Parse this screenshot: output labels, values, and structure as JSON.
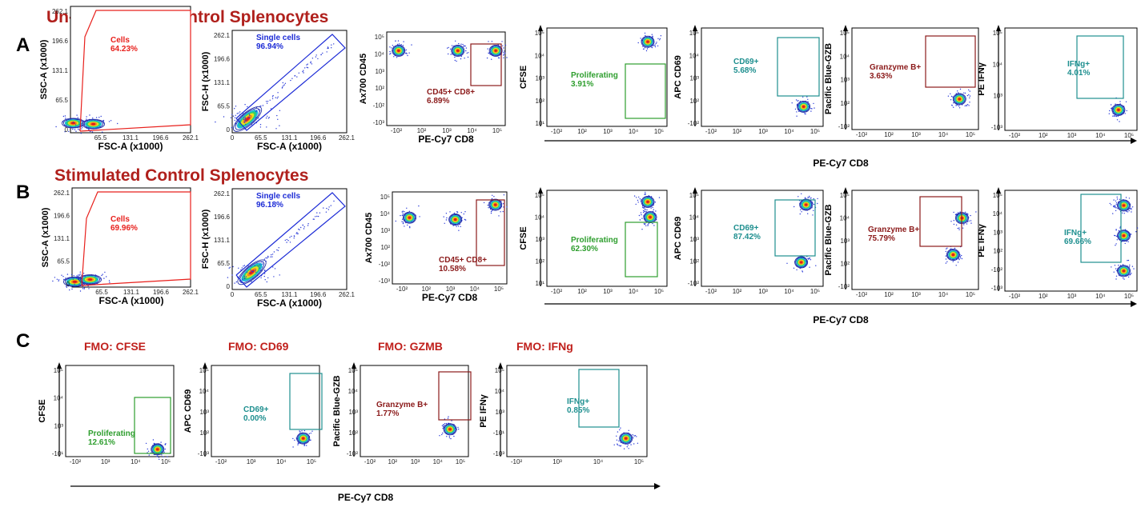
{
  "figure": {
    "section_a_title": "Un-Stimulated Control Splenocytes",
    "section_b_title": "Stimulated Control Splenocytes",
    "letter_a": "A",
    "letter_b": "B",
    "letter_c": "C",
    "shared_x_label": "PE-Cy7 CD8"
  },
  "colors": {
    "title_dark_red": "#b0201c",
    "gate_red": "#e8201c",
    "gate_blue": "#1c2bd6",
    "gate_dark_red": "#8b1a1a",
    "gate_green": "#2e9e2e",
    "gate_teal": "#1e8f8f"
  },
  "chart_data": [
    {
      "id": "A1",
      "type": "scatter",
      "subtype": "flow-cytometry-contour",
      "xlabel": "FSC-A (x1000)",
      "ylabel": "SSC-A (x1000)",
      "x_scale": "linear",
      "y_scale": "linear",
      "xlim": [
        0,
        262.1
      ],
      "ylim": [
        0,
        262.1
      ],
      "x_ticks": [
        "65.5",
        "131.1",
        "196.6",
        "262.1"
      ],
      "y_ticks": [
        "262.1",
        "196.6",
        "131.1",
        "65.5",
        "0"
      ],
      "gate": {
        "name": "Cells",
        "value": "64.23%",
        "color": "#e8201c"
      },
      "density_centers": [
        {
          "x": 6,
          "y": 20
        },
        {
          "x": 50,
          "y": 18
        }
      ]
    },
    {
      "id": "A2",
      "type": "scatter",
      "subtype": "flow-cytometry-contour",
      "xlabel": "FSC-A (x1000)",
      "ylabel": "FSC-H (x1000)",
      "x_scale": "linear",
      "y_scale": "linear",
      "xlim": [
        0,
        262.1
      ],
      "ylim": [
        0,
        262.1
      ],
      "x_ticks": [
        "0",
        "65.5",
        "131.1",
        "196.6",
        "262.1"
      ],
      "y_ticks": [
        "262.1",
        "196.6",
        "131.1",
        "65.5",
        "0"
      ],
      "gate": {
        "name": "Single cells",
        "value": "96.94%",
        "color": "#1c2bd6"
      },
      "density_centers": [
        {
          "x": 35,
          "y": 35
        }
      ]
    },
    {
      "id": "A3",
      "type": "scatter",
      "subtype": "flow-cytometry-contour",
      "xlabel": "PE-Cy7 CD8",
      "ylabel": "Ax700 CD45",
      "x_scale": "biexponential",
      "y_scale": "biexponential",
      "x_ticks": [
        "-10²",
        "10²",
        "10³",
        "10⁴",
        "10⁵"
      ],
      "y_ticks": [
        "10⁵",
        "10⁴",
        "10³",
        "10²",
        "-10²",
        "-10³"
      ],
      "gate": {
        "name": "CD45+ CD8+",
        "value": "6.89%",
        "color": "#8b1a1a"
      },
      "density_centers": [
        {
          "x": 0.1,
          "y": 0.8
        },
        {
          "x": 0.6,
          "y": 0.8
        },
        {
          "x": 0.92,
          "y": 0.8
        }
      ]
    },
    {
      "id": "A4",
      "type": "scatter",
      "subtype": "flow-cytometry-contour",
      "xlabel": "",
      "ylabel": "CFSE",
      "x_scale": "biexponential",
      "y_scale": "biexponential",
      "x_ticks": [
        "-10²",
        "10²",
        "10³",
        "10⁴",
        "10⁵"
      ],
      "y_ticks": [
        "10⁵",
        "10⁴",
        "10³",
        "10²",
        "10¹"
      ],
      "gate": {
        "name": "Proliferating",
        "value": "3.91%",
        "color": "#2e9e2e"
      },
      "density_centers": [
        {
          "x": 0.84,
          "y": 0.86
        }
      ]
    },
    {
      "id": "A5",
      "type": "scatter",
      "subtype": "flow-cytometry-contour",
      "xlabel": "",
      "ylabel": "APC CD69",
      "x_scale": "biexponential",
      "y_scale": "biexponential",
      "x_ticks": [
        "-10²",
        "10²",
        "10³",
        "10⁴",
        "10⁵"
      ],
      "y_ticks": [
        "10⁵",
        "10⁴",
        "10³",
        "10²",
        "-10²"
      ],
      "gate": {
        "name": "CD69+",
        "value": "5.68%",
        "color": "#1e8f8f"
      },
      "density_centers": [
        {
          "x": 0.84,
          "y": 0.2
        }
      ]
    },
    {
      "id": "A6",
      "type": "scatter",
      "subtype": "flow-cytometry-contour",
      "xlabel": "PE-Cy7 CD8",
      "ylabel": "Pacific Blue-GZB",
      "x_scale": "biexponential",
      "y_scale": "biexponential",
      "x_ticks": [
        "-10²",
        "10²",
        "10³",
        "10⁴",
        "10⁵"
      ],
      "y_ticks": [
        "10⁵",
        "10⁴",
        "10³",
        "10²",
        "-10²"
      ],
      "gate": {
        "name": "Granzyme B+",
        "value": "3.63%",
        "color": "#8b1a1a"
      },
      "density_centers": [
        {
          "x": 0.85,
          "y": 0.3
        }
      ]
    },
    {
      "id": "A7",
      "type": "scatter",
      "subtype": "flow-cytometry-contour",
      "xlabel": "",
      "ylabel": "PE IFNγ",
      "x_scale": "biexponential",
      "y_scale": "biexponential",
      "x_ticks": [
        "-10²",
        "10²",
        "10³",
        "10⁴",
        "10⁵"
      ],
      "y_ticks": [
        "10⁵",
        "10⁴",
        "10³",
        "-10³"
      ],
      "gate": {
        "name": "IFNg+",
        "value": "4.01%",
        "color": "#1e8f8f"
      },
      "density_centers": [
        {
          "x": 0.86,
          "y": 0.2
        }
      ]
    },
    {
      "id": "B1",
      "type": "scatter",
      "subtype": "flow-cytometry-contour",
      "xlabel": "FSC-A (x1000)",
      "ylabel": "SSC-A (x1000)",
      "x_scale": "linear",
      "y_scale": "linear",
      "xlim": [
        0,
        262.1
      ],
      "ylim": [
        0,
        262.1
      ],
      "x_ticks": [
        "65.5",
        "131.1",
        "196.6",
        "262.1"
      ],
      "y_ticks": [
        "262.1",
        "196.6",
        "131.1",
        "65.5",
        "0"
      ],
      "gate": {
        "name": "Cells",
        "value": "69.96%",
        "color": "#e8201c"
      },
      "density_centers": [
        {
          "x": 6,
          "y": 14
        },
        {
          "x": 40,
          "y": 20
        }
      ]
    },
    {
      "id": "B2",
      "type": "scatter",
      "subtype": "flow-cytometry-contour",
      "xlabel": "FSC-A (x1000)",
      "ylabel": "FSC-H (x1000)",
      "x_scale": "linear",
      "y_scale": "linear",
      "xlim": [
        0,
        262.1
      ],
      "ylim": [
        0,
        262.1
      ],
      "x_ticks": [
        "0",
        "65.5",
        "131.1",
        "196.6",
        "262.1"
      ],
      "y_ticks": [
        "262.1",
        "196.6",
        "131.1",
        "65.5",
        "0"
      ],
      "gate": {
        "name": "Single cells",
        "value": "96.18%",
        "color": "#1c2bd6"
      },
      "density_centers": [
        {
          "x": 45,
          "y": 45
        }
      ]
    },
    {
      "id": "B3",
      "type": "scatter",
      "subtype": "flow-cytometry-contour",
      "xlabel": "PE-Cy7 CD8",
      "ylabel": "Ax700 CD45",
      "x_scale": "biexponential",
      "y_scale": "biexponential",
      "x_ticks": [
        "-10²",
        "10²",
        "10³",
        "10⁴",
        "10⁵"
      ],
      "y_ticks": [
        "10⁵",
        "10⁴",
        "10³",
        "10²",
        "-10²",
        "-10³"
      ],
      "gate": {
        "name": "CD45+ CD8+",
        "value": "10.58%",
        "color": "#8b1a1a"
      },
      "density_centers": [
        {
          "x": 0.15,
          "y": 0.72
        },
        {
          "x": 0.55,
          "y": 0.7
        },
        {
          "x": 0.9,
          "y": 0.86
        }
      ]
    },
    {
      "id": "B4",
      "type": "scatter",
      "subtype": "flow-cytometry-contour",
      "xlabel": "",
      "ylabel": "CFSE",
      "x_scale": "biexponential",
      "y_scale": "biexponential",
      "x_ticks": [
        "-10²",
        "10²",
        "10³",
        "10⁴",
        "10⁵"
      ],
      "y_ticks": [
        "10⁵",
        "10⁴",
        "10³",
        "10²",
        "10¹"
      ],
      "gate": {
        "name": "Proliferating",
        "value": "62.30%",
        "color": "#2e9e2e"
      },
      "density_centers": [
        {
          "x": 0.84,
          "y": 0.88
        },
        {
          "x": 0.86,
          "y": 0.72
        }
      ]
    },
    {
      "id": "B5",
      "type": "scatter",
      "subtype": "flow-cytometry-contour",
      "xlabel": "",
      "ylabel": "APC CD69",
      "x_scale": "biexponential",
      "y_scale": "biexponential",
      "x_ticks": [
        "-10²",
        "10²",
        "10³",
        "10⁴",
        "10⁵"
      ],
      "y_ticks": [
        "10⁵",
        "10⁴",
        "10³",
        "10²",
        "-10²"
      ],
      "gate": {
        "name": "CD69+",
        "value": "87.42%",
        "color": "#1e8f8f"
      },
      "density_centers": [
        {
          "x": 0.86,
          "y": 0.85
        },
        {
          "x": 0.82,
          "y": 0.25
        }
      ]
    },
    {
      "id": "B6",
      "type": "scatter",
      "subtype": "flow-cytometry-contour",
      "xlabel": "PE-Cy7 CD8",
      "ylabel": "Pacific Blue-GZB",
      "x_scale": "biexponential",
      "y_scale": "biexponential",
      "x_ticks": [
        "-10²",
        "10²",
        "10³",
        "10⁴",
        "10⁵"
      ],
      "y_ticks": [
        "10⁵",
        "10⁴",
        "10³",
        "10²",
        "-10²"
      ],
      "gate": {
        "name": "Granzyme B+",
        "value": "75.79%",
        "color": "#8b1a1a"
      },
      "density_centers": [
        {
          "x": 0.87,
          "y": 0.72
        },
        {
          "x": 0.8,
          "y": 0.35
        }
      ]
    },
    {
      "id": "B7",
      "type": "scatter",
      "subtype": "flow-cytometry-contour",
      "xlabel": "",
      "ylabel": "PE IFNγ",
      "x_scale": "biexponential",
      "y_scale": "biexponential",
      "x_ticks": [
        "-10²",
        "10²",
        "10³",
        "10⁴",
        "10⁵"
      ],
      "y_ticks": [
        "10⁵",
        "10⁴",
        "10³",
        "10²",
        "-10²",
        "-10³"
      ],
      "gate": {
        "name": "IFNg+",
        "value": "69.66%",
        "color": "#1e8f8f"
      },
      "density_centers": [
        {
          "x": 0.9,
          "y": 0.85
        },
        {
          "x": 0.9,
          "y": 0.55
        },
        {
          "x": 0.9,
          "y": 0.2
        }
      ]
    },
    {
      "id": "C1",
      "type": "scatter",
      "subtype": "flow-cytometry-contour",
      "title": "FMO: CFSE",
      "xlabel": "",
      "ylabel": "CFSE",
      "x_scale": "biexponential",
      "y_scale": "biexponential",
      "x_ticks": [
        "-10²",
        "10³",
        "10⁴",
        "10⁵"
      ],
      "y_ticks": [
        "10⁵",
        "10⁴",
        "10³",
        "-10¹"
      ],
      "gate": {
        "name": "Proliferating",
        "value": "12.61%",
        "color": "#2e9e2e"
      },
      "density_centers": [
        {
          "x": 0.85,
          "y": 0.08
        }
      ]
    },
    {
      "id": "C2",
      "type": "scatter",
      "subtype": "flow-cytometry-contour",
      "title": "FMO: CD69",
      "xlabel": "",
      "ylabel": "APC CD69",
      "x_scale": "biexponential",
      "y_scale": "biexponential",
      "x_ticks": [
        "-10²",
        "10³",
        "10⁴",
        "10⁵"
      ],
      "y_ticks": [
        "10⁵",
        "10⁴",
        "10³",
        "10²",
        "-10³"
      ],
      "gate": {
        "name": "CD69+",
        "value": "0.00%",
        "color": "#1e8f8f"
      },
      "density_centers": [
        {
          "x": 0.85,
          "y": 0.2
        }
      ]
    },
    {
      "id": "C3",
      "type": "scatter",
      "subtype": "flow-cytometry-contour",
      "title": "FMO: GZMB",
      "xlabel": "PE-Cy7 CD8",
      "ylabel": "Pacific Blue-GZB",
      "x_scale": "biexponential",
      "y_scale": "biexponential",
      "x_ticks": [
        "-10²",
        "10²",
        "10³",
        "10⁴",
        "10⁵"
      ],
      "y_ticks": [
        "10⁵",
        "10⁴",
        "10³",
        "10²",
        "-10²"
      ],
      "gate": {
        "name": "Granzyme B+",
        "value": "1.77%",
        "color": "#8b1a1a"
      },
      "density_centers": [
        {
          "x": 0.83,
          "y": 0.3
        }
      ]
    },
    {
      "id": "C4",
      "type": "scatter",
      "subtype": "flow-cytometry-contour",
      "title": "FMO: IFNg",
      "xlabel": "",
      "ylabel": "PE IFNγ",
      "x_scale": "biexponential",
      "y_scale": "biexponential",
      "x_ticks": [
        "-10²",
        "10³",
        "10⁴",
        "10⁵"
      ],
      "y_ticks": [
        "10⁵",
        "10⁴",
        "10³",
        "-10¹",
        "-10³"
      ],
      "gate": {
        "name": "IFNg+",
        "value": "0.85%",
        "color": "#1e8f8f"
      },
      "density_centers": [
        {
          "x": 0.85,
          "y": 0.2
        }
      ]
    }
  ]
}
